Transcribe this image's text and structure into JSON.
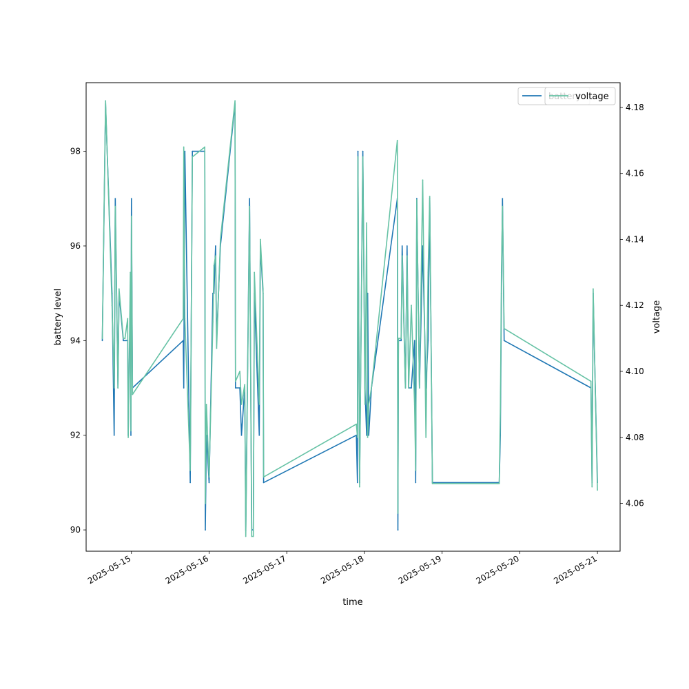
{
  "chart_data": {
    "type": "line",
    "x_type": "date",
    "xlabel": "time",
    "ylabel_left": "battery level",
    "ylabel_right": "voltage",
    "xlim": [
      "2025-05-14T10:00",
      "2025-05-21T07:00"
    ],
    "ylim_left": [
      89.55,
      99.45
    ],
    "ylim_right": [
      4.0455,
      4.1875
    ],
    "x_ticks": [
      "2025-05-15",
      "2025-05-16",
      "2025-05-17",
      "2025-05-18",
      "2025-05-19",
      "2025-05-20",
      "2025-05-21"
    ],
    "y_ticks_left": [
      90,
      92,
      94,
      96,
      98
    ],
    "y_ticks_right": [
      4.06,
      4.08,
      4.1,
      4.12,
      4.14,
      4.16,
      4.18
    ],
    "grid": false,
    "legend_position": "top-right",
    "series": [
      {
        "name": "battery",
        "axis": "left",
        "color": "#1f77b4",
        "points": [
          [
            "2025-05-14T15:00",
            94
          ],
          [
            "2025-05-14T16:00",
            99
          ],
          [
            "2025-05-14T18:00",
            95
          ],
          [
            "2025-05-14T18:40",
            92
          ],
          [
            "2025-05-14T19:00",
            97
          ],
          [
            "2025-05-14T19:50",
            93
          ],
          [
            "2025-05-14T20:10",
            95
          ],
          [
            "2025-05-14T21:30",
            94
          ],
          [
            "2025-05-14T22:00",
            94
          ],
          [
            "2025-05-14T22:50",
            94
          ],
          [
            "2025-05-14T23:00",
            92
          ],
          [
            "2025-05-14T23:40",
            95
          ],
          [
            "2025-05-14T23:50",
            92
          ],
          [
            "2025-05-15T00:00",
            97
          ],
          [
            "2025-05-15T00:20",
            93
          ],
          [
            "2025-05-15T16:00",
            94
          ],
          [
            "2025-05-15T16:10",
            93
          ],
          [
            "2025-05-15T16:30",
            98
          ],
          [
            "2025-05-15T18:10",
            91
          ],
          [
            "2025-05-15T18:50",
            98
          ],
          [
            "2025-05-15T22:40",
            98
          ],
          [
            "2025-05-15T22:50",
            90
          ],
          [
            "2025-05-15T23:10",
            92
          ],
          [
            "2025-05-16T00:00",
            91
          ],
          [
            "2025-05-16T01:10",
            95
          ],
          [
            "2025-05-16T01:30",
            95
          ],
          [
            "2025-05-16T02:00",
            96
          ],
          [
            "2025-05-16T02:20",
            94
          ],
          [
            "2025-05-16T03:30",
            96
          ],
          [
            "2025-05-16T08:00",
            99
          ],
          [
            "2025-05-16T08:10",
            93
          ],
          [
            "2025-05-16T09:30",
            93
          ],
          [
            "2025-05-16T10:00",
            92
          ],
          [
            "2025-05-16T11:00",
            93
          ],
          [
            "2025-05-16T11:20",
            90
          ],
          [
            "2025-05-16T12:30",
            97
          ],
          [
            "2025-05-16T13:10",
            90
          ],
          [
            "2025-05-16T13:40",
            90
          ],
          [
            "2025-05-16T14:00",
            95
          ],
          [
            "2025-05-16T15:30",
            92
          ],
          [
            "2025-05-16T15:50",
            96
          ],
          [
            "2025-05-16T16:40",
            95
          ],
          [
            "2025-05-16T16:50",
            91
          ],
          [
            "2025-05-17T21:30",
            92
          ],
          [
            "2025-05-17T21:50",
            91
          ],
          [
            "2025-05-17T22:00",
            98
          ],
          [
            "2025-05-17T22:30",
            91
          ],
          [
            "2025-05-17T23:30",
            98
          ],
          [
            "2025-05-18T00:10",
            93
          ],
          [
            "2025-05-18T00:40",
            92
          ],
          [
            "2025-05-18T01:00",
            95
          ],
          [
            "2025-05-18T01:20",
            92
          ],
          [
            "2025-05-18T02:10",
            93
          ],
          [
            "2025-05-18T10:10",
            97
          ],
          [
            "2025-05-18T10:20",
            90
          ],
          [
            "2025-05-18T10:30",
            94
          ],
          [
            "2025-05-18T11:20",
            94
          ],
          [
            "2025-05-18T11:40",
            96
          ],
          [
            "2025-05-18T12:40",
            93
          ],
          [
            "2025-05-18T13:10",
            96
          ],
          [
            "2025-05-18T13:40",
            93
          ],
          [
            "2025-05-18T14:30",
            93
          ],
          [
            "2025-05-18T15:30",
            94
          ],
          [
            "2025-05-18T15:50",
            91
          ],
          [
            "2025-05-18T16:10",
            97
          ],
          [
            "2025-05-18T17:00",
            93
          ],
          [
            "2025-05-18T18:00",
            96
          ],
          [
            "2025-05-18T19:00",
            93
          ],
          [
            "2025-05-18T19:40",
            94
          ],
          [
            "2025-05-18T20:10",
            97
          ],
          [
            "2025-05-18T21:00",
            91
          ],
          [
            "2025-05-19T17:00",
            91
          ],
          [
            "2025-05-19T17:40",
            91
          ],
          [
            "2025-05-19T18:00",
            92
          ],
          [
            "2025-05-19T18:20",
            95
          ],
          [
            "2025-05-19T18:40",
            97
          ],
          [
            "2025-05-19T19:10",
            94
          ],
          [
            "2025-05-20T22:00",
            93
          ],
          [
            "2025-05-20T22:20",
            91
          ],
          [
            "2025-05-20T22:40",
            95
          ],
          [
            "2025-05-21T00:00",
            91
          ]
        ]
      },
      {
        "name": "voltage",
        "axis": "right",
        "color": "#66c2a5",
        "points": [
          [
            "2025-05-14T15:00",
            4.11
          ],
          [
            "2025-05-14T16:00",
            4.182
          ],
          [
            "2025-05-14T18:00",
            4.12
          ],
          [
            "2025-05-14T18:40",
            4.095
          ],
          [
            "2025-05-14T19:00",
            4.15
          ],
          [
            "2025-05-14T19:50",
            4.095
          ],
          [
            "2025-05-14T20:10",
            4.125
          ],
          [
            "2025-05-14T21:30",
            4.11
          ],
          [
            "2025-05-14T22:00",
            4.11
          ],
          [
            "2025-05-14T22:50",
            4.116
          ],
          [
            "2025-05-14T23:00",
            4.08
          ],
          [
            "2025-05-14T23:40",
            4.13
          ],
          [
            "2025-05-14T23:50",
            4.082
          ],
          [
            "2025-05-15T00:00",
            4.147
          ],
          [
            "2025-05-15T00:20",
            4.093
          ],
          [
            "2025-05-15T16:00",
            4.116
          ],
          [
            "2025-05-15T16:10",
            4.168
          ],
          [
            "2025-05-15T16:30",
            4.116
          ],
          [
            "2025-05-15T18:10",
            4.07
          ],
          [
            "2025-05-15T18:50",
            4.165
          ],
          [
            "2025-05-15T22:40",
            4.168
          ],
          [
            "2025-05-15T22:50",
            4.06
          ],
          [
            "2025-05-15T23:10",
            4.09
          ],
          [
            "2025-05-16T00:00",
            4.068
          ],
          [
            "2025-05-16T01:10",
            4.115
          ],
          [
            "2025-05-16T01:30",
            4.132
          ],
          [
            "2025-05-16T02:00",
            4.135
          ],
          [
            "2025-05-16T02:20",
            4.107
          ],
          [
            "2025-05-16T03:30",
            4.14
          ],
          [
            "2025-05-16T08:00",
            4.182
          ],
          [
            "2025-05-16T08:10",
            4.097
          ],
          [
            "2025-05-16T09:30",
            4.1
          ],
          [
            "2025-05-16T10:00",
            4.09
          ],
          [
            "2025-05-16T11:00",
            4.096
          ],
          [
            "2025-05-16T11:20",
            4.05
          ],
          [
            "2025-05-16T12:30",
            4.15
          ],
          [
            "2025-05-16T13:10",
            4.05
          ],
          [
            "2025-05-16T13:40",
            4.05
          ],
          [
            "2025-05-16T14:00",
            4.13
          ],
          [
            "2025-05-16T15:30",
            4.09
          ],
          [
            "2025-05-16T15:50",
            4.14
          ],
          [
            "2025-05-16T16:40",
            4.125
          ],
          [
            "2025-05-16T16:50",
            4.068
          ],
          [
            "2025-05-17T21:30",
            4.084
          ],
          [
            "2025-05-17T21:50",
            4.08
          ],
          [
            "2025-05-17T22:00",
            4.165
          ],
          [
            "2025-05-17T22:30",
            4.065
          ],
          [
            "2025-05-17T23:30",
            4.165
          ],
          [
            "2025-05-18T00:10",
            4.09
          ],
          [
            "2025-05-18T00:40",
            4.145
          ],
          [
            "2025-05-18T01:00",
            4.08
          ],
          [
            "2025-05-18T01:20",
            4.09
          ],
          [
            "2025-05-18T02:10",
            4.095
          ],
          [
            "2025-05-18T10:10",
            4.17
          ],
          [
            "2025-05-18T10:20",
            4.057
          ],
          [
            "2025-05-18T10:30",
            4.11
          ],
          [
            "2025-05-18T11:20",
            4.11
          ],
          [
            "2025-05-18T11:40",
            4.135
          ],
          [
            "2025-05-18T12:40",
            4.095
          ],
          [
            "2025-05-18T13:10",
            4.135
          ],
          [
            "2025-05-18T13:40",
            4.095
          ],
          [
            "2025-05-18T14:30",
            4.12
          ],
          [
            "2025-05-18T15:30",
            4.09
          ],
          [
            "2025-05-18T15:50",
            4.07
          ],
          [
            "2025-05-18T16:10",
            4.152
          ],
          [
            "2025-05-18T17:00",
            4.095
          ],
          [
            "2025-05-18T18:00",
            4.158
          ],
          [
            "2025-05-18T19:00",
            4.08
          ],
          [
            "2025-05-18T19:40",
            4.13
          ],
          [
            "2025-05-18T20:10",
            4.153
          ],
          [
            "2025-05-18T21:00",
            4.066
          ],
          [
            "2025-05-19T17:00",
            4.066
          ],
          [
            "2025-05-19T17:40",
            4.066
          ],
          [
            "2025-05-19T18:00",
            4.088
          ],
          [
            "2025-05-19T18:20",
            4.13
          ],
          [
            "2025-05-19T18:40",
            4.15
          ],
          [
            "2025-05-19T19:10",
            4.113
          ],
          [
            "2025-05-20T22:00",
            4.097
          ],
          [
            "2025-05-20T22:20",
            4.065
          ],
          [
            "2025-05-20T22:40",
            4.125
          ],
          [
            "2025-05-21T00:00",
            4.064
          ]
        ]
      }
    ]
  }
}
